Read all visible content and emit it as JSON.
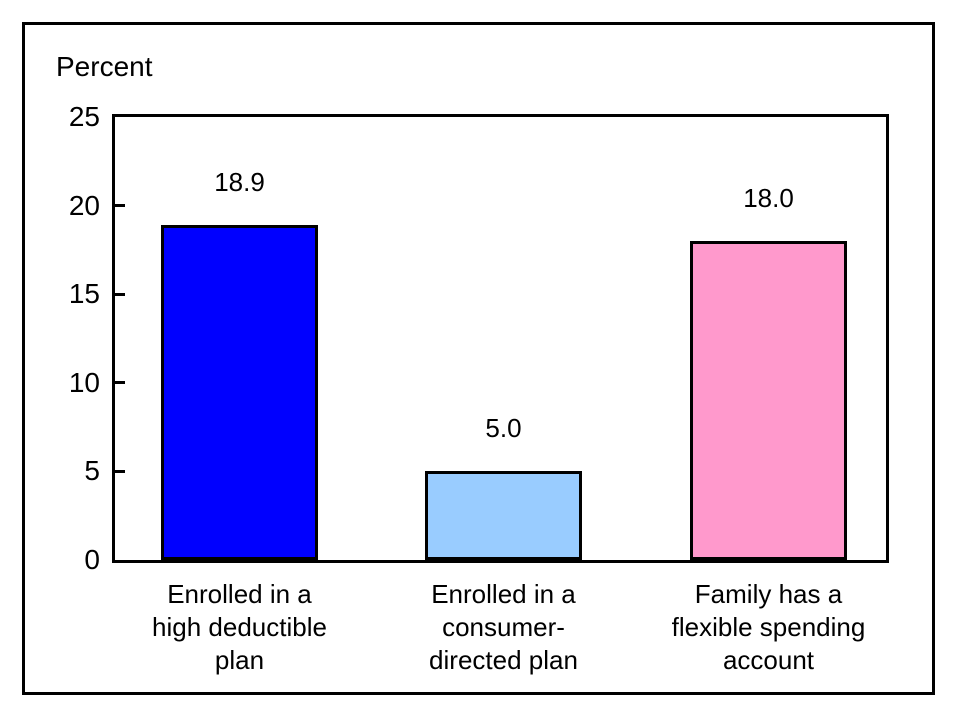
{
  "page": {
    "background_color": "#ffffff",
    "frame_border_color": "#000000"
  },
  "chart_data": {
    "type": "bar",
    "title": "",
    "ylabel": "Percent",
    "xlabel": "",
    "ylim": [
      0,
      25
    ],
    "yticks": [
      0,
      5,
      10,
      15,
      20,
      25
    ],
    "grid": false,
    "legend": "none",
    "categories": [
      [
        "Enrolled in a",
        "high deductible",
        "plan"
      ],
      [
        "Enrolled in a",
        "consumer-",
        "directed plan"
      ],
      [
        "Family has a",
        "flexible spending",
        "account"
      ]
    ],
    "values": [
      18.9,
      5.0,
      18.0
    ],
    "value_labels": [
      "18.9",
      "5.0",
      "18.0"
    ],
    "bar_colors": [
      "#0000FF",
      "#99CCFF",
      "#FF99CC"
    ],
    "bar_border_color": "#000000",
    "axis_color": "#000000",
    "text_color": "#000000"
  }
}
